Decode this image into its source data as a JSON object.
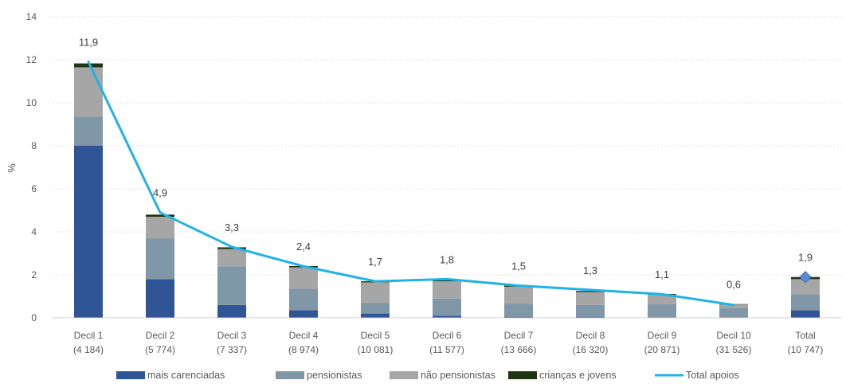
{
  "chart_data": {
    "type": "bar",
    "stacked": true,
    "ylabel": "%",
    "ylim": [
      0,
      14
    ],
    "yticks": [
      0,
      2,
      4,
      6,
      8,
      10,
      12,
      14
    ],
    "grid": true,
    "legend_position": "bottom",
    "categories": [
      {
        "label": "Decil 1",
        "sub": "(4 184)"
      },
      {
        "label": "Decil 2",
        "sub": "(5 774)"
      },
      {
        "label": "Decil 3",
        "sub": "(7 337)"
      },
      {
        "label": "Decil 4",
        "sub": "(8 974)"
      },
      {
        "label": "Decil 5",
        "sub": "(10 081)"
      },
      {
        "label": "Decil 6",
        "sub": "(11 577)"
      },
      {
        "label": "Decil 7",
        "sub": "(13 666)"
      },
      {
        "label": "Decil 8",
        "sub": "(16 320)"
      },
      {
        "label": "Decil 9",
        "sub": "(20 871)"
      },
      {
        "label": "Decil 10",
        "sub": "(31 526)"
      },
      {
        "label": "Total",
        "sub": "(10 747)"
      }
    ],
    "series": [
      {
        "name": "mais carenciadas",
        "color": "#2F5597",
        "values": [
          8.0,
          1.8,
          0.6,
          0.35,
          0.2,
          0.1,
          0.05,
          0.05,
          0.03,
          0.02,
          0.35
        ]
      },
      {
        "name": "pensionistas",
        "color": "#7F97A6",
        "values": [
          1.35,
          1.9,
          1.8,
          1.0,
          0.5,
          0.8,
          0.6,
          0.55,
          0.6,
          0.45,
          0.75
        ]
      },
      {
        "name": "não pensionistas",
        "color": "#A6A6A6",
        "values": [
          2.3,
          1.0,
          0.8,
          1.0,
          0.95,
          0.8,
          0.8,
          0.6,
          0.45,
          0.15,
          0.7
        ]
      },
      {
        "name": "crianças e jovens",
        "color": "#1E3513",
        "values": [
          0.18,
          0.1,
          0.08,
          0.06,
          0.05,
          0.05,
          0.05,
          0.05,
          0.03,
          0.02,
          0.1
        ]
      }
    ],
    "line": {
      "name": "Total apoios",
      "color": "#1FB3E5",
      "values": [
        11.9,
        4.9,
        3.3,
        2.4,
        1.7,
        1.8,
        1.5,
        1.3,
        1.1,
        0.6
      ],
      "labels": [
        "11,9",
        "4,9",
        "3,3",
        "2,4",
        "1,7",
        "1,8",
        "1,5",
        "1,3",
        "1,1",
        "0,6"
      ]
    },
    "total_marker": {
      "value": 1.9,
      "label": "1,9",
      "color": "#5B8BD6"
    }
  }
}
